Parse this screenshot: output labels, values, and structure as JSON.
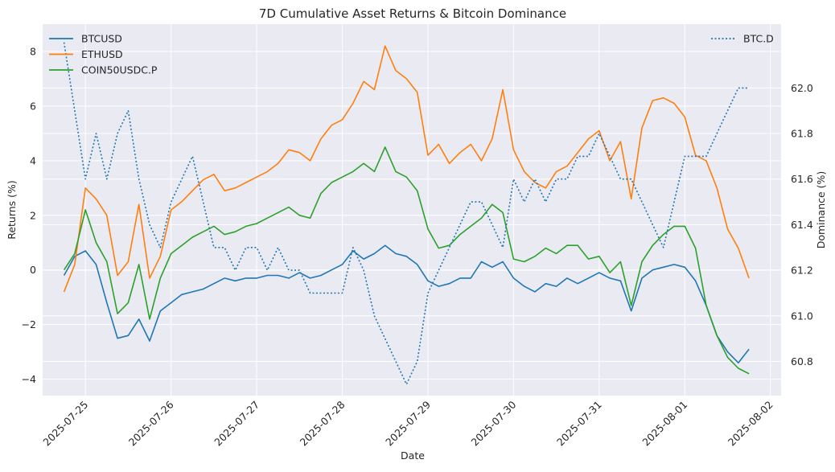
{
  "chart_data": {
    "type": "line",
    "title": "7D Cumulative Asset Returns & Bitcoin Dominance",
    "xlabel": "Date",
    "ylabel": "Returns (%)",
    "y2label": "Dominance (%)",
    "ylim": [
      -4.6,
      9.0
    ],
    "y2lim": [
      60.65,
      62.28
    ],
    "xlim": [
      "2025-07-24T12:00",
      "2025-08-02T03:00"
    ],
    "x_ticks": [
      "2025-07-25",
      "2025-07-26",
      "2025-07-27",
      "2025-07-28",
      "2025-07-29",
      "2025-07-30",
      "2025-07-31",
      "2025-08-01",
      "2025-08-02"
    ],
    "y_ticks": [
      -4,
      -2,
      0,
      2,
      4,
      6,
      8
    ],
    "y2_ticks": [
      60.8,
      61.0,
      61.2,
      61.4,
      61.6,
      61.8,
      62.0
    ],
    "grid": true,
    "legend_left_placement": "upper-left",
    "legend_right_placement": "upper-right",
    "x": [
      "2025-07-24T18:00",
      "2025-07-24T21:00",
      "2025-07-25T00:00",
      "2025-07-25T03:00",
      "2025-07-25T06:00",
      "2025-07-25T09:00",
      "2025-07-25T12:00",
      "2025-07-25T15:00",
      "2025-07-25T18:00",
      "2025-07-25T21:00",
      "2025-07-26T00:00",
      "2025-07-26T03:00",
      "2025-07-26T06:00",
      "2025-07-26T09:00",
      "2025-07-26T12:00",
      "2025-07-26T15:00",
      "2025-07-26T18:00",
      "2025-07-26T21:00",
      "2025-07-27T00:00",
      "2025-07-27T03:00",
      "2025-07-27T06:00",
      "2025-07-27T09:00",
      "2025-07-27T12:00",
      "2025-07-27T15:00",
      "2025-07-27T18:00",
      "2025-07-27T21:00",
      "2025-07-28T00:00",
      "2025-07-28T03:00",
      "2025-07-28T06:00",
      "2025-07-28T09:00",
      "2025-07-28T12:00",
      "2025-07-28T15:00",
      "2025-07-28T18:00",
      "2025-07-28T21:00",
      "2025-07-29T00:00",
      "2025-07-29T03:00",
      "2025-07-29T06:00",
      "2025-07-29T09:00",
      "2025-07-29T12:00",
      "2025-07-29T15:00",
      "2025-07-29T18:00",
      "2025-07-29T21:00",
      "2025-07-30T00:00",
      "2025-07-30T03:00",
      "2025-07-30T06:00",
      "2025-07-30T09:00",
      "2025-07-30T12:00",
      "2025-07-30T15:00",
      "2025-07-30T18:00",
      "2025-07-30T21:00",
      "2025-07-31T00:00",
      "2025-07-31T03:00",
      "2025-07-31T06:00",
      "2025-07-31T09:00",
      "2025-07-31T12:00",
      "2025-07-31T15:00",
      "2025-07-31T18:00",
      "2025-07-31T21:00",
      "2025-08-01T00:00",
      "2025-08-01T03:00",
      "2025-08-01T06:00",
      "2025-08-01T09:00",
      "2025-08-01T12:00",
      "2025-08-01T15:00",
      "2025-08-01T18:00"
    ],
    "series": [
      {
        "name": "BTCUSD",
        "axis": "left",
        "color": "#1f77b4",
        "style": "solid",
        "values": [
          -0.2,
          0.5,
          0.7,
          0.2,
          -1.2,
          -2.5,
          -2.4,
          -1.8,
          -2.6,
          -1.5,
          -1.2,
          -0.9,
          -0.8,
          -0.7,
          -0.5,
          -0.3,
          -0.4,
          -0.3,
          -0.3,
          -0.2,
          -0.2,
          -0.3,
          -0.1,
          -0.3,
          -0.2,
          0.0,
          0.2,
          0.7,
          0.4,
          0.6,
          0.9,
          0.6,
          0.5,
          0.2,
          -0.4,
          -0.6,
          -0.5,
          -0.3,
          -0.3,
          0.3,
          0.1,
          0.3,
          -0.3,
          -0.6,
          -0.8,
          -0.5,
          -0.6,
          -0.3,
          -0.5,
          -0.3,
          -0.1,
          -0.3,
          -0.4,
          -1.5,
          -0.3,
          0.0,
          0.1,
          0.2,
          0.1,
          -0.4,
          -1.3,
          -2.4,
          -3.0,
          -3.4,
          -2.9
        ]
      },
      {
        "name": "ETHUSD",
        "axis": "left",
        "color": "#ff7f0e",
        "style": "solid",
        "values": [
          -0.8,
          0.2,
          3.0,
          2.6,
          2.0,
          -0.2,
          0.3,
          2.4,
          -0.3,
          0.5,
          2.2,
          2.5,
          2.9,
          3.3,
          3.5,
          2.9,
          3.0,
          3.2,
          3.4,
          3.6,
          3.9,
          4.4,
          4.3,
          4.0,
          4.8,
          5.3,
          5.5,
          6.1,
          6.9,
          6.6,
          8.2,
          7.3,
          7.0,
          6.5,
          4.2,
          4.6,
          3.9,
          4.3,
          4.6,
          4.0,
          4.8,
          6.6,
          4.4,
          3.6,
          3.2,
          3.0,
          3.6,
          3.8,
          4.3,
          4.8,
          5.1,
          4.0,
          4.7,
          2.6,
          5.2,
          6.2,
          6.3,
          6.1,
          5.6,
          4.2,
          4.0,
          3.0,
          1.5,
          0.8,
          -0.3
        ]
      },
      {
        "name": "COIN50USDC.P",
        "axis": "left",
        "color": "#2ca02c",
        "style": "solid",
        "values": [
          0.0,
          0.6,
          2.2,
          1.0,
          0.3,
          -1.6,
          -1.2,
          0.2,
          -1.8,
          -0.3,
          0.6,
          0.9,
          1.2,
          1.4,
          1.6,
          1.3,
          1.4,
          1.6,
          1.7,
          1.9,
          2.1,
          2.3,
          2.0,
          1.9,
          2.8,
          3.2,
          3.4,
          3.6,
          3.9,
          3.6,
          4.5,
          3.6,
          3.4,
          2.9,
          1.5,
          0.8,
          0.9,
          1.3,
          1.6,
          1.9,
          2.4,
          2.1,
          0.4,
          0.3,
          0.5,
          0.8,
          0.6,
          0.9,
          0.9,
          0.4,
          0.5,
          -0.1,
          0.3,
          -1.3,
          0.3,
          0.9,
          1.3,
          1.6,
          1.6,
          0.8,
          -1.3,
          -2.4,
          -3.2,
          -3.6,
          -3.8
        ]
      },
      {
        "name": "BTC.D",
        "axis": "right",
        "color": "#1f77b4",
        "style": "dotted",
        "values": [
          62.2,
          61.9,
          61.6,
          61.8,
          61.6,
          61.8,
          61.9,
          61.6,
          61.4,
          61.3,
          61.5,
          61.6,
          61.7,
          61.5,
          61.3,
          61.3,
          61.2,
          61.3,
          61.3,
          61.2,
          61.3,
          61.2,
          61.2,
          61.1,
          61.1,
          61.1,
          61.1,
          61.3,
          61.2,
          61.0,
          60.9,
          60.8,
          60.7,
          60.8,
          61.1,
          61.2,
          61.3,
          61.4,
          61.5,
          61.5,
          61.4,
          61.3,
          61.6,
          61.5,
          61.6,
          61.5,
          61.6,
          61.6,
          61.7,
          61.7,
          61.8,
          61.7,
          61.6,
          61.6,
          61.5,
          61.4,
          61.3,
          61.5,
          61.7,
          61.7,
          61.7,
          61.8,
          61.9,
          62.0,
          62.0
        ]
      }
    ]
  }
}
